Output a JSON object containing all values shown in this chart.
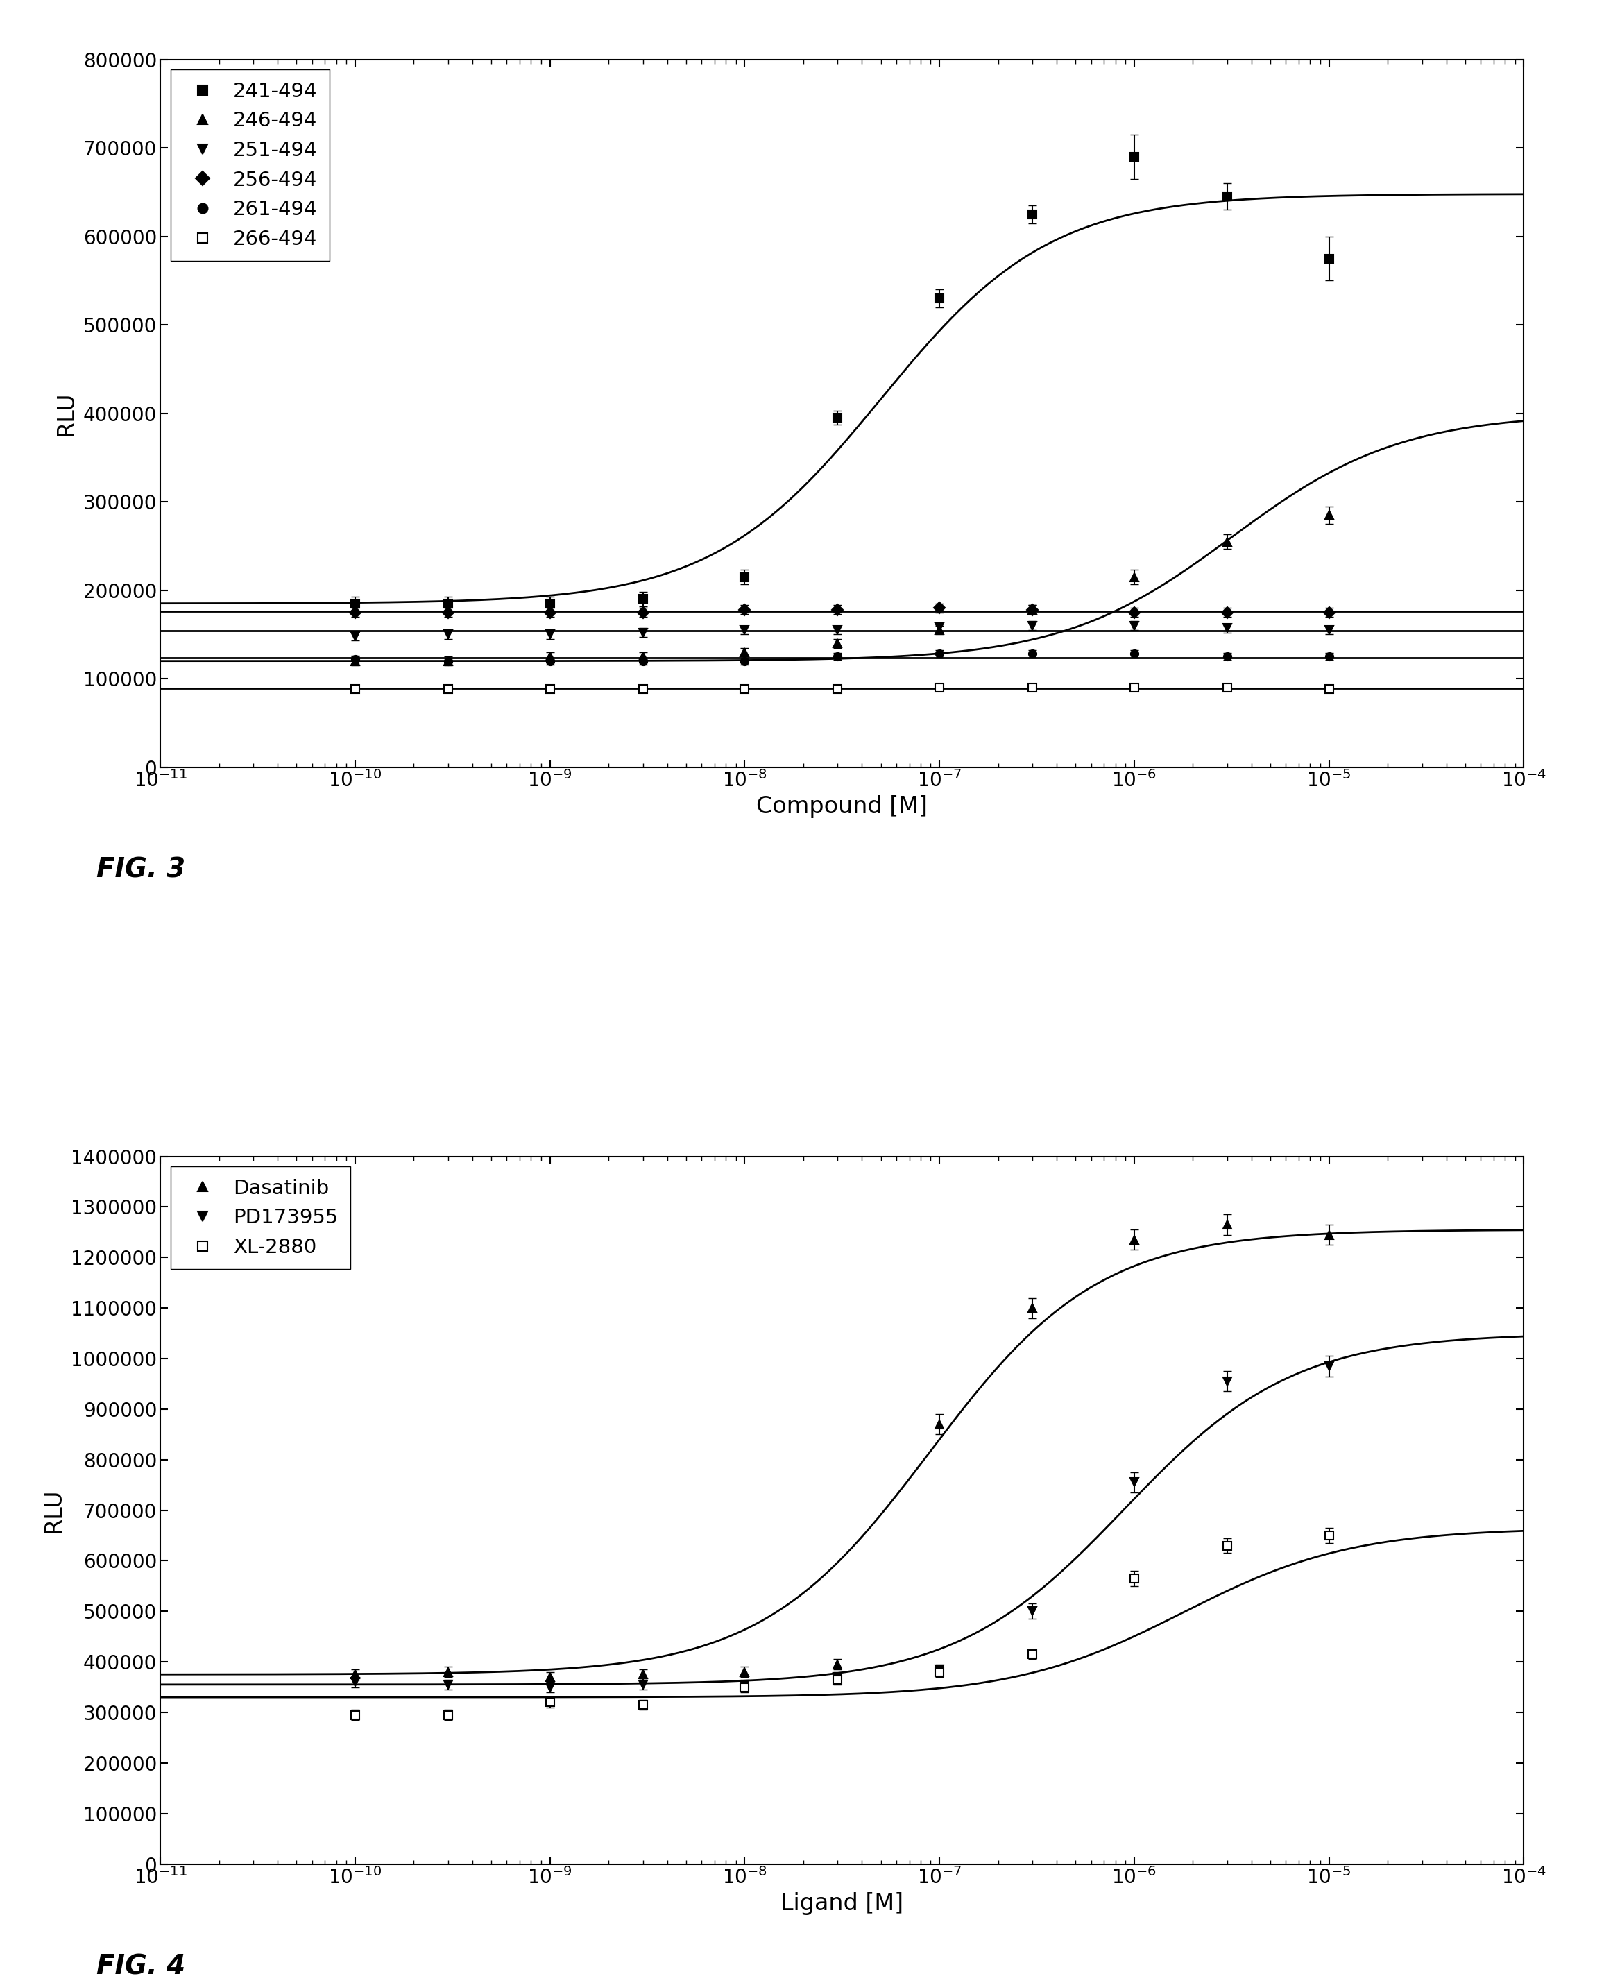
{
  "fig3": {
    "xlabel": "Compound [M]",
    "ylabel": "RLU",
    "fig_label": "FIG. 3",
    "ylim": [
      0,
      800000
    ],
    "yticks": [
      0,
      100000,
      200000,
      300000,
      400000,
      500000,
      600000,
      700000,
      800000
    ],
    "xlim_log": [
      -11,
      -4
    ],
    "series": [
      {
        "label": "241-494",
        "marker": "s",
        "filled": true,
        "color": "#000000",
        "x_data": [
          1e-10,
          3e-10,
          1e-09,
          3e-09,
          1e-08,
          3e-08,
          1e-07,
          3e-07,
          1e-06,
          3e-06,
          1e-05
        ],
        "y_data": [
          185000,
          185000,
          185000,
          190000,
          215000,
          395000,
          530000,
          625000,
          690000,
          645000,
          575000
        ],
        "y_err": [
          8000,
          8000,
          8000,
          8000,
          8000,
          8000,
          10000,
          10000,
          25000,
          15000,
          25000
        ],
        "logEC50": -7.3,
        "bottom": 185000,
        "top": 648000
      },
      {
        "label": "246-494",
        "marker": "^",
        "filled": true,
        "color": "#000000",
        "x_data": [
          1e-10,
          3e-10,
          1e-09,
          3e-09,
          1e-08,
          3e-08,
          1e-07,
          3e-07,
          1e-06,
          3e-06,
          1e-05
        ],
        "y_data": [
          120000,
          120000,
          125000,
          125000,
          130000,
          140000,
          155000,
          178000,
          215000,
          255000,
          285000
        ],
        "y_err": [
          5000,
          5000,
          5000,
          5000,
          5000,
          5000,
          5000,
          5000,
          8000,
          8000,
          10000
        ],
        "logEC50": -5.5,
        "bottom": 120000,
        "top": 400000
      },
      {
        "label": "251-494",
        "marker": "v",
        "filled": true,
        "color": "#000000",
        "x_data": [
          1e-10,
          3e-10,
          1e-09,
          3e-09,
          1e-08,
          3e-08,
          1e-07,
          3e-07,
          1e-06,
          3e-06,
          1e-05
        ],
        "y_data": [
          148000,
          150000,
          150000,
          152000,
          155000,
          155000,
          158000,
          160000,
          160000,
          157000,
          155000
        ],
        "y_err": [
          5000,
          5000,
          5000,
          5000,
          5000,
          5000,
          5000,
          5000,
          5000,
          5000,
          5000
        ],
        "logEC50": null,
        "flat_y": 154000
      },
      {
        "label": "256-494",
        "marker": "D",
        "filled": true,
        "color": "#000000",
        "x_data": [
          1e-10,
          3e-10,
          1e-09,
          3e-09,
          1e-08,
          3e-08,
          1e-07,
          3e-07,
          1e-06,
          3e-06,
          1e-05
        ],
        "y_data": [
          175000,
          175000,
          175000,
          175000,
          178000,
          178000,
          180000,
          178000,
          175000,
          175000,
          175000
        ],
        "y_err": [
          5000,
          5000,
          5000,
          5000,
          5000,
          5000,
          5000,
          5000,
          5000,
          5000,
          5000
        ],
        "logEC50": null,
        "flat_y": 176500
      },
      {
        "label": "261-494",
        "marker": "o",
        "filled": true,
        "color": "#000000",
        "x_data": [
          1e-10,
          3e-10,
          1e-09,
          3e-09,
          1e-08,
          3e-08,
          1e-07,
          3e-07,
          1e-06,
          3e-06,
          1e-05
        ],
        "y_data": [
          122000,
          120000,
          120000,
          120000,
          120000,
          125000,
          128000,
          128000,
          128000,
          125000,
          125000
        ],
        "y_err": [
          4000,
          4000,
          4000,
          4000,
          4000,
          4000,
          4000,
          4000,
          4000,
          4000,
          4000
        ],
        "logEC50": null,
        "flat_y": 124000
      },
      {
        "label": "266-494",
        "marker": "s",
        "filled": false,
        "color": "#000000",
        "x_data": [
          1e-10,
          3e-10,
          1e-09,
          3e-09,
          1e-08,
          3e-08,
          1e-07,
          3e-07,
          1e-06,
          3e-06,
          1e-05
        ],
        "y_data": [
          88000,
          88000,
          88000,
          88000,
          88000,
          88000,
          90000,
          90000,
          90000,
          90000,
          88000
        ],
        "y_err": [
          3000,
          3000,
          3000,
          3000,
          3000,
          3000,
          3000,
          3000,
          3000,
          3000,
          3000
        ],
        "logEC50": null,
        "flat_y": 89000
      }
    ]
  },
  "fig4": {
    "xlabel": "Ligand [M]",
    "ylabel": "RLU",
    "fig_label": "FIG. 4",
    "ylim": [
      0,
      1400000
    ],
    "yticks": [
      0,
      100000,
      200000,
      300000,
      400000,
      500000,
      600000,
      700000,
      800000,
      900000,
      1000000,
      1100000,
      1200000,
      1300000,
      1400000
    ],
    "xlim_log": [
      -11,
      -4
    ],
    "series": [
      {
        "label": "Dasatinib",
        "marker": "^",
        "filled": true,
        "color": "#000000",
        "x_data": [
          1e-10,
          3e-10,
          1e-09,
          3e-09,
          1e-08,
          3e-08,
          1e-07,
          3e-07,
          1e-06,
          3e-06,
          1e-05
        ],
        "y_data": [
          375000,
          380000,
          370000,
          375000,
          380000,
          395000,
          870000,
          1100000,
          1235000,
          1265000,
          1245000
        ],
        "y_err": [
          10000,
          10000,
          10000,
          10000,
          10000,
          10000,
          20000,
          20000,
          20000,
          20000,
          20000
        ],
        "logEC50": -7.05,
        "bottom": 375000,
        "top": 1255000
      },
      {
        "label": "PD173955",
        "marker": "v",
        "filled": true,
        "color": "#000000",
        "x_data": [
          1e-10,
          3e-10,
          1e-09,
          3e-09,
          1e-08,
          3e-08,
          1e-07,
          3e-07,
          1e-06,
          3e-06,
          1e-05
        ],
        "y_data": [
          360000,
          355000,
          350000,
          355000,
          355000,
          370000,
          385000,
          500000,
          755000,
          955000,
          985000
        ],
        "y_err": [
          10000,
          10000,
          10000,
          10000,
          10000,
          10000,
          10000,
          15000,
          20000,
          20000,
          20000
        ],
        "logEC50": -6.05,
        "bottom": 355000,
        "top": 1050000
      },
      {
        "label": "XL-2880",
        "marker": "s",
        "filled": false,
        "color": "#000000",
        "x_data": [
          1e-10,
          3e-10,
          1e-09,
          3e-09,
          1e-08,
          3e-08,
          1e-07,
          3e-07,
          1e-06,
          3e-06,
          1e-05
        ],
        "y_data": [
          295000,
          295000,
          320000,
          315000,
          350000,
          365000,
          380000,
          415000,
          565000,
          630000,
          650000
        ],
        "y_err": [
          10000,
          10000,
          10000,
          10000,
          10000,
          10000,
          10000,
          10000,
          15000,
          15000,
          15000
        ],
        "logEC50": -5.75,
        "bottom": 330000,
        "top": 665000
      }
    ]
  },
  "fig_bg_color": "#ffffff",
  "plot_bg_color": "#ffffff",
  "text_color": "#000000",
  "marker_size": 8,
  "line_width": 2.0,
  "font_size_label": 24,
  "font_size_tick": 20,
  "font_size_legend": 21,
  "font_size_fig_label": 28
}
